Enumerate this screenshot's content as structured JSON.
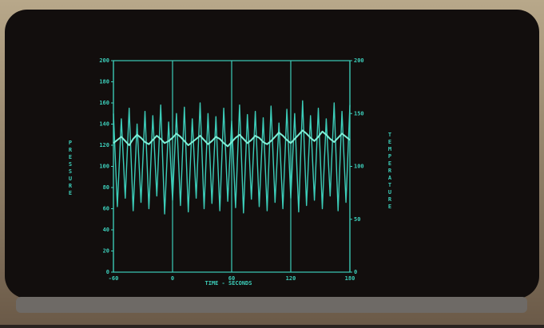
{
  "chart_data": {
    "type": "line",
    "x_label": "TIME - SECONDS",
    "y_label": "PRESSURE",
    "y2_label": "TEMPERATURE",
    "x": [
      -60,
      -56,
      -52,
      -48,
      -44,
      -40,
      -36,
      -32,
      -28,
      -24,
      -20,
      -16,
      -12,
      -8,
      -4,
      0,
      4,
      8,
      12,
      16,
      20,
      24,
      28,
      32,
      36,
      40,
      44,
      48,
      52,
      56,
      60,
      64,
      68,
      72,
      76,
      80,
      84,
      88,
      92,
      96,
      100,
      104,
      108,
      112,
      116,
      120,
      124,
      128,
      132,
      136,
      140,
      144,
      148,
      152,
      156,
      160,
      164,
      168,
      172,
      176,
      180
    ],
    "series": [
      {
        "name": "PRESSURE",
        "color": "#3ccdb9",
        "axis": "y",
        "values": [
          150,
          62,
          145,
          70,
          155,
          58,
          140,
          66,
          152,
          60,
          148,
          72,
          158,
          55,
          142,
          68,
          150,
          63,
          156,
          57,
          145,
          70,
          160,
          60,
          150,
          65,
          147,
          58,
          155,
          67,
          143,
          61,
          158,
          56,
          149,
          69,
          152,
          62,
          146,
          58,
          157,
          66,
          141,
          60,
          154,
          70,
          150,
          57,
          162,
          63,
          148,
          68,
          155,
          60,
          145,
          72,
          160,
          58,
          152,
          66,
          158
        ]
      },
      {
        "name": "TEMPERATURE",
        "color": "#7ff0d8",
        "axis": "y2",
        "values": [
          122,
          125,
          128,
          124,
          120,
          126,
          130,
          127,
          123,
          121,
          125,
          129,
          126,
          122,
          124,
          127,
          131,
          128,
          124,
          120,
          123,
          126,
          129,
          125,
          121,
          124,
          128,
          126,
          122,
          119,
          123,
          127,
          130,
          126,
          122,
          125,
          129,
          127,
          123,
          121,
          124,
          128,
          132,
          129,
          125,
          122,
          126,
          130,
          134,
          131,
          127,
          124,
          128,
          133,
          130,
          126,
          123,
          127,
          131,
          128,
          125
        ]
      }
    ],
    "xlim": [
      -60,
      180
    ],
    "xticks": [
      -60,
      0,
      60,
      120,
      180
    ],
    "ylim": [
      0,
      200
    ],
    "yticks": [
      0,
      20,
      40,
      60,
      80,
      100,
      120,
      140,
      160,
      180,
      200
    ],
    "y2lim": [
      0,
      200
    ],
    "y2ticks": [
      0,
      50,
      100,
      150,
      200
    ],
    "grid": true
  }
}
